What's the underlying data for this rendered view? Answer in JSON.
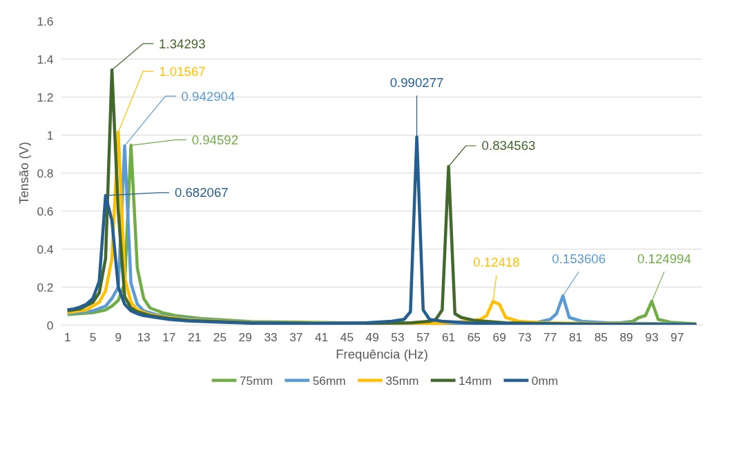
{
  "chart_data": {
    "type": "line",
    "xlabel": "Frequência (Hz)",
    "ylabel": "Tensão (V)",
    "xlim": [
      0,
      101
    ],
    "xticks": [
      1,
      5,
      9,
      13,
      17,
      21,
      25,
      29,
      33,
      37,
      41,
      45,
      49,
      53,
      57,
      61,
      65,
      69,
      73,
      77,
      81,
      85,
      89,
      93,
      97
    ],
    "ylim": [
      0,
      1.6
    ],
    "yticks": [
      0,
      0.2,
      0.4,
      0.6,
      0.8,
      1,
      1.2,
      1.4,
      1.6
    ],
    "grid": "y",
    "legend": "bottom",
    "series": [
      {
        "name": "75mm",
        "color": "#70ad47",
        "x": [
          1,
          5,
          7,
          8,
          9,
          10,
          11,
          12,
          13,
          14,
          16,
          18,
          22,
          30,
          50,
          80,
          88,
          90,
          91,
          92,
          93,
          94,
          96,
          100
        ],
        "values": [
          0.055,
          0.065,
          0.08,
          0.1,
          0.13,
          0.22,
          0.94592,
          0.3,
          0.14,
          0.09,
          0.065,
          0.05,
          0.035,
          0.018,
          0.01,
          0.008,
          0.012,
          0.02,
          0.04,
          0.05,
          0.124994,
          0.03,
          0.015,
          0.006
        ],
        "value_labels": [
          null,
          null,
          null,
          null,
          null,
          null,
          "0.94592",
          null,
          null,
          null,
          null,
          null,
          null,
          null,
          null,
          null,
          null,
          null,
          null,
          null,
          "0.124994",
          null,
          null,
          null
        ]
      },
      {
        "name": "56mm",
        "color": "#5b9bd5",
        "x": [
          1,
          5,
          7,
          8,
          9,
          10,
          11,
          12,
          13,
          15,
          18,
          22,
          30,
          50,
          70,
          75,
          77,
          78,
          79,
          80,
          82,
          86,
          100
        ],
        "values": [
          0.06,
          0.075,
          0.1,
          0.14,
          0.2,
          0.942904,
          0.22,
          0.11,
          0.075,
          0.055,
          0.04,
          0.028,
          0.015,
          0.008,
          0.008,
          0.015,
          0.03,
          0.06,
          0.153606,
          0.04,
          0.02,
          0.012,
          0.005
        ],
        "value_labels": [
          null,
          null,
          null,
          null,
          null,
          "0.942904",
          null,
          null,
          null,
          null,
          null,
          null,
          null,
          null,
          null,
          null,
          null,
          null,
          "0.153606",
          null,
          null,
          null,
          null
        ]
      },
      {
        "name": "35mm",
        "color": "#ffc000",
        "x": [
          1,
          4,
          6,
          7,
          8,
          9,
          10,
          11,
          12,
          14,
          17,
          20,
          30,
          50,
          60,
          64,
          66,
          67,
          68,
          69,
          70,
          72,
          76,
          85,
          100
        ],
        "values": [
          0.065,
          0.08,
          0.12,
          0.18,
          0.35,
          1.01567,
          0.25,
          0.12,
          0.08,
          0.055,
          0.04,
          0.028,
          0.013,
          0.008,
          0.01,
          0.02,
          0.03,
          0.05,
          0.12418,
          0.11,
          0.04,
          0.02,
          0.012,
          0.008,
          0.004
        ],
        "value_labels": [
          null,
          null,
          null,
          null,
          null,
          "1.01567",
          null,
          null,
          null,
          null,
          null,
          null,
          null,
          null,
          null,
          null,
          null,
          null,
          "0.12418",
          null,
          null,
          null,
          null,
          null,
          null
        ]
      },
      {
        "name": "14mm",
        "color": "#43682b",
        "x": [
          1,
          3,
          5,
          6,
          7,
          8,
          9,
          10,
          11,
          12,
          14,
          17,
          20,
          30,
          45,
          55,
          58,
          59,
          60,
          61,
          62,
          63,
          65,
          70,
          80,
          100
        ],
        "values": [
          0.075,
          0.085,
          0.12,
          0.17,
          0.35,
          1.34293,
          0.6,
          0.15,
          0.09,
          0.07,
          0.05,
          0.035,
          0.025,
          0.012,
          0.008,
          0.012,
          0.02,
          0.03,
          0.08,
          0.834563,
          0.06,
          0.04,
          0.025,
          0.012,
          0.006,
          0.003
        ],
        "value_labels": [
          null,
          null,
          null,
          null,
          null,
          "1.34293",
          null,
          null,
          null,
          null,
          null,
          null,
          null,
          null,
          null,
          null,
          null,
          null,
          null,
          "0.834563",
          null,
          null,
          null,
          null,
          null,
          null
        ]
      },
      {
        "name": "0mm",
        "color": "#255e91",
        "x": [
          1,
          2,
          3,
          4,
          5,
          6,
          7,
          8,
          9,
          10,
          11,
          12,
          13,
          15,
          17,
          20,
          25,
          30,
          40,
          48,
          52,
          54,
          55,
          56,
          57,
          58,
          60,
          65,
          75,
          100
        ],
        "values": [
          0.08,
          0.085,
          0.095,
          0.11,
          0.14,
          0.23,
          0.682067,
          0.55,
          0.2,
          0.11,
          0.075,
          0.06,
          0.05,
          0.04,
          0.03,
          0.022,
          0.015,
          0.01,
          0.008,
          0.012,
          0.02,
          0.03,
          0.07,
          0.990277,
          0.08,
          0.03,
          0.02,
          0.01,
          0.005,
          0.003
        ],
        "value_labels": [
          null,
          null,
          null,
          null,
          null,
          null,
          "0.682067",
          null,
          null,
          null,
          null,
          null,
          null,
          null,
          null,
          null,
          null,
          null,
          null,
          null,
          null,
          null,
          null,
          "0.990277",
          null,
          null,
          null,
          null,
          null,
          null
        ]
      }
    ]
  }
}
